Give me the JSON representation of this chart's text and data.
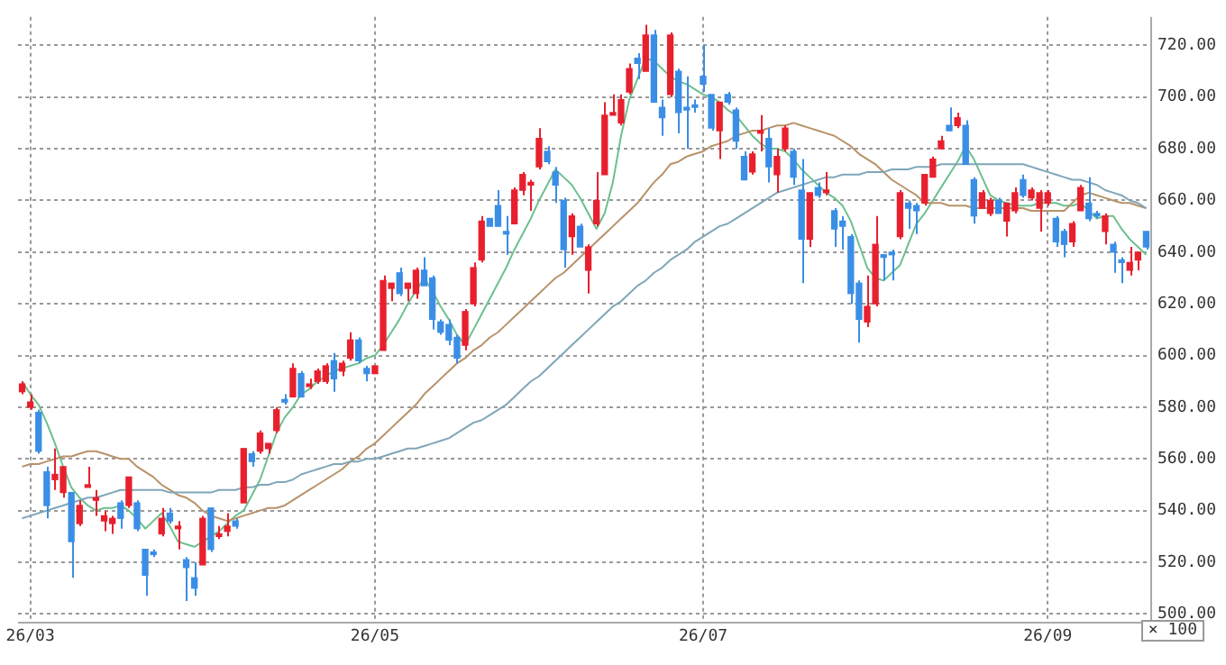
{
  "chart_data": {
    "type": "candlestick",
    "marker": "none",
    "grid": true,
    "categories": [
      null,
      "26/03",
      null,
      null,
      null,
      null,
      null,
      null,
      null,
      null,
      null,
      null,
      null,
      null,
      null,
      null,
      null,
      null,
      null,
      null,
      null,
      null,
      null,
      null,
      null,
      null,
      null,
      null,
      null,
      null,
      null,
      null,
      null,
      null,
      null,
      null,
      null,
      null,
      null,
      null,
      null,
      null,
      null,
      "26/05",
      null,
      null,
      null,
      null,
      null,
      null,
      null,
      null,
      null,
      null,
      null,
      null,
      null,
      null,
      null,
      null,
      null,
      null,
      null,
      null,
      null,
      null,
      null,
      null,
      null,
      null,
      null,
      null,
      null,
      null,
      null,
      null,
      null,
      null,
      null,
      null,
      null,
      null,
      null,
      "26/07",
      null,
      null,
      null,
      null,
      null,
      null,
      null,
      null,
      null,
      null,
      null,
      null,
      null,
      null,
      null,
      null,
      null,
      null,
      null,
      null,
      null,
      null,
      null,
      null,
      null,
      null,
      null,
      null,
      null,
      null,
      null,
      null,
      null,
      null,
      null,
      null,
      null,
      null,
      null,
      null,
      null,
      "26/09",
      null,
      null,
      null,
      null,
      null,
      null,
      null,
      null,
      null,
      null,
      null,
      null
    ],
    "ohlc": [
      [
        586,
        590,
        585,
        589
      ],
      [
        580,
        585,
        579,
        582
      ],
      [
        578,
        579,
        562,
        563
      ],
      [
        555,
        557,
        537,
        542
      ],
      [
        552,
        564,
        548,
        554
      ],
      [
        547,
        557,
        545,
        557
      ],
      [
        547,
        547,
        514,
        528
      ],
      [
        535,
        544,
        534,
        542
      ],
      [
        549,
        557,
        549,
        550
      ],
      [
        544,
        548,
        538,
        545
      ],
      [
        536,
        540,
        532,
        538
      ],
      [
        535,
        538,
        531,
        537
      ],
      [
        543,
        544,
        533,
        537
      ],
      [
        542,
        553,
        541,
        553
      ],
      [
        543,
        544,
        532,
        533
      ],
      [
        525,
        525,
        507,
        515
      ],
      [
        524,
        525,
        522,
        523
      ],
      [
        531,
        541,
        530,
        537
      ],
      [
        539,
        541,
        535,
        536
      ],
      [
        533,
        536,
        525,
        534
      ],
      [
        521,
        522,
        505,
        518
      ],
      [
        514,
        520,
        507,
        510
      ],
      [
        519,
        538,
        519,
        537
      ],
      [
        541,
        541,
        524,
        525
      ],
      [
        530,
        534,
        529,
        531
      ],
      [
        532,
        539,
        530,
        534
      ],
      [
        536,
        537,
        533,
        534
      ],
      [
        543,
        564,
        543,
        564
      ],
      [
        562,
        563,
        557,
        559
      ],
      [
        563,
        571,
        562,
        570
      ],
      [
        564,
        566,
        562,
        566
      ],
      [
        571,
        580,
        570,
        579
      ],
      [
        583,
        585,
        581,
        582
      ],
      [
        584,
        597,
        584,
        595
      ],
      [
        593,
        594,
        584,
        584
      ],
      [
        588,
        591,
        587,
        589
      ],
      [
        590,
        595,
        589,
        594
      ],
      [
        590,
        597,
        589,
        596
      ],
      [
        598,
        601,
        586,
        591
      ],
      [
        594,
        598,
        592,
        597
      ],
      [
        599,
        609,
        598,
        606
      ],
      [
        606,
        607,
        597,
        598
      ],
      [
        595,
        596,
        590,
        593
      ],
      [
        593,
        596,
        593,
        596
      ],
      [
        602,
        631,
        602,
        629
      ],
      [
        626,
        628,
        621,
        628
      ],
      [
        632,
        634,
        623,
        624
      ],
      [
        626,
        628,
        621,
        628
      ],
      [
        624,
        634,
        622,
        633
      ],
      [
        633,
        638,
        627,
        627
      ],
      [
        630,
        631,
        610,
        614
      ],
      [
        613,
        614,
        608,
        609
      ],
      [
        612,
        614,
        604,
        606
      ],
      [
        607,
        608,
        597,
        599
      ],
      [
        604,
        618,
        602,
        617
      ],
      [
        620,
        636,
        619,
        634
      ],
      [
        637,
        654,
        636,
        652
      ],
      [
        653,
        653,
        650,
        650
      ],
      [
        658,
        664,
        650,
        650
      ],
      [
        648,
        654,
        639,
        647
      ],
      [
        651,
        665,
        651,
        664
      ],
      [
        664,
        671,
        662,
        670
      ],
      [
        666,
        668,
        656,
        667
      ],
      [
        673,
        688,
        672,
        684
      ],
      [
        679,
        681,
        674,
        675
      ],
      [
        671,
        673,
        659,
        666
      ],
      [
        660,
        661,
        634,
        641
      ],
      [
        646,
        655,
        639,
        654
      ],
      [
        650,
        651,
        642,
        642
      ],
      [
        633,
        643,
        624,
        642
      ],
      [
        651,
        671,
        650,
        660
      ],
      [
        670,
        698,
        670,
        693
      ],
      [
        693,
        701,
        693,
        694
      ],
      [
        690,
        701,
        689,
        699
      ],
      [
        702,
        713,
        701,
        711
      ],
      [
        715,
        717,
        707,
        713
      ],
      [
        710,
        728,
        710,
        724
      ],
      [
        724,
        726,
        698,
        698
      ],
      [
        696,
        699,
        685,
        692
      ],
      [
        701,
        725,
        700,
        724
      ],
      [
        710,
        711,
        686,
        694
      ],
      [
        696,
        708,
        680,
        695
      ],
      [
        697,
        699,
        694,
        696
      ],
      [
        708,
        720,
        702,
        705
      ],
      [
        701,
        701,
        687,
        688
      ],
      [
        687,
        698,
        676,
        698
      ],
      [
        701,
        702,
        697,
        698
      ],
      [
        695,
        696,
        680,
        683
      ],
      [
        677,
        679,
        668,
        668
      ],
      [
        671,
        679,
        670,
        678
      ],
      [
        686,
        693,
        679,
        687
      ],
      [
        684,
        688,
        667,
        673
      ],
      [
        670,
        680,
        663,
        677
      ],
      [
        680,
        689,
        679,
        688
      ],
      [
        679,
        680,
        666,
        669
      ],
      [
        664,
        676,
        628,
        645
      ],
      [
        645,
        663,
        642,
        663
      ],
      [
        665,
        667,
        661,
        662
      ],
      [
        663,
        671,
        662,
        664
      ],
      [
        656,
        657,
        642,
        649
      ],
      [
        652,
        654,
        641,
        650
      ],
      [
        646,
        647,
        620,
        624
      ],
      [
        628,
        629,
        605,
        614
      ],
      [
        613,
        631,
        611,
        619
      ],
      [
        620,
        654,
        619,
        643
      ],
      [
        639,
        639,
        629,
        638
      ],
      [
        640,
        641,
        629,
        639
      ],
      [
        646,
        664,
        645,
        663
      ],
      [
        659,
        660,
        649,
        657
      ],
      [
        658,
        659,
        647,
        656
      ],
      [
        659,
        670,
        658,
        670
      ],
      [
        669,
        677,
        669,
        676
      ],
      [
        680,
        685,
        680,
        683
      ],
      [
        689,
        696,
        687,
        687
      ],
      [
        689,
        694,
        688,
        692
      ],
      [
        689,
        691,
        674,
        674
      ],
      [
        668,
        669,
        651,
        654
      ],
      [
        657,
        664,
        657,
        663
      ],
      [
        655,
        661,
        654,
        660
      ],
      [
        660,
        661,
        655,
        655
      ],
      [
        652,
        659,
        646,
        659
      ],
      [
        656,
        665,
        655,
        663
      ],
      [
        668,
        670,
        661,
        662
      ],
      [
        661,
        665,
        660,
        664
      ],
      [
        657,
        664,
        648,
        663
      ],
      [
        659,
        664,
        658,
        663
      ],
      [
        653,
        654,
        642,
        644
      ],
      [
        648,
        649,
        638,
        643
      ],
      [
        644,
        652,
        642,
        651
      ],
      [
        656,
        666,
        656,
        665
      ],
      [
        659,
        669,
        652,
        653
      ],
      [
        655,
        656,
        653,
        654
      ],
      [
        648,
        655,
        643,
        654
      ],
      [
        643,
        644,
        632,
        640
      ],
      [
        637,
        638,
        628,
        636
      ],
      [
        633,
        642,
        631,
        636
      ],
      [
        637,
        640,
        633,
        640
      ],
      [
        648,
        648,
        641,
        642
      ]
    ],
    "colors": [
      "#e8202e",
      "#e8202e",
      "#3a8ee6",
      "#3a8ee6",
      "#e8202e",
      "#e8202e",
      "#3a8ee6",
      "#e8202e",
      "#e8202e",
      "#e8202e",
      "#e8202e",
      "#e8202e",
      "#3a8ee6",
      "#e8202e",
      "#3a8ee6",
      "#3a8ee6",
      "#3a8ee6",
      "#e8202e",
      "#3a8ee6",
      "#e8202e",
      "#3a8ee6",
      "#3a8ee6",
      "#e8202e",
      "#3a8ee6",
      "#e8202e",
      "#e8202e",
      "#3a8ee6",
      "#e8202e",
      "#3a8ee6",
      "#e8202e",
      "#e8202e",
      "#e8202e",
      "#3a8ee6",
      "#e8202e",
      "#3a8ee6",
      "#e8202e",
      "#e8202e",
      "#e8202e",
      "#3a8ee6",
      "#e8202e",
      "#e8202e",
      "#3a8ee6",
      "#3a8ee6",
      "#e8202e",
      "#e8202e",
      "#e8202e",
      "#3a8ee6",
      "#e8202e",
      "#e8202e",
      "#3a8ee6",
      "#3a8ee6",
      "#3a8ee6",
      "#3a8ee6",
      "#3a8ee6",
      "#e8202e",
      "#e8202e",
      "#e8202e",
      "#3a8ee6",
      "#3a8ee6",
      "#3a8ee6",
      "#e8202e",
      "#e8202e",
      "#e8202e",
      "#e8202e",
      "#3a8ee6",
      "#3a8ee6",
      "#3a8ee6",
      "#e8202e",
      "#3a8ee6",
      "#e8202e",
      "#e8202e",
      "#e8202e",
      "#e8202e",
      "#e8202e",
      "#e8202e",
      "#3a8ee6",
      "#e8202e",
      "#3a8ee6",
      "#3a8ee6",
      "#e8202e",
      "#3a8ee6",
      "#3a8ee6",
      "#3a8ee6",
      "#3a8ee6",
      "#3a8ee6",
      "#e8202e",
      "#3a8ee6",
      "#3a8ee6",
      "#3a8ee6",
      "#e8202e",
      "#e8202e",
      "#3a8ee6",
      "#e8202e",
      "#e8202e",
      "#3a8ee6",
      "#3a8ee6",
      "#e8202e",
      "#3a8ee6",
      "#e8202e",
      "#3a8ee6",
      "#3a8ee6",
      "#3a8ee6",
      "#3a8ee6",
      "#e8202e",
      "#e8202e",
      "#3a8ee6",
      "#3a8ee6",
      "#e8202e",
      "#3a8ee6",
      "#3a8ee6",
      "#e8202e",
      "#e8202e",
      "#e8202e",
      "#3a8ee6",
      "#e8202e",
      "#3a8ee6",
      "#3a8ee6",
      "#e8202e",
      "#e8202e",
      "#3a8ee6",
      "#e8202e",
      "#e8202e",
      "#3a8ee6",
      "#e8202e",
      "#e8202e",
      "#e8202e",
      "#3a8ee6",
      "#3a8ee6",
      "#e8202e",
      "#e8202e",
      "#3a8ee6",
      "#3a8ee6",
      "#e8202e",
      "#3a8ee6",
      "#3a8ee6",
      "#e8202e",
      "#e8202e",
      "#3a8ee6"
    ],
    "series": [
      {
        "type": "line",
        "color": "#7fa6b8",
        "values": [
          537,
          538,
          539,
          540,
          541,
          542,
          543,
          544,
          545,
          545,
          546,
          547,
          548,
          548,
          548,
          548,
          548,
          548,
          547,
          547,
          547,
          547,
          547,
          547,
          548,
          548,
          548,
          549,
          549,
          550,
          550,
          551,
          551,
          552,
          554,
          555,
          556,
          557,
          558,
          558,
          559,
          559,
          560,
          560,
          561,
          562,
          563,
          564,
          564,
          565,
          566,
          567,
          568,
          570,
          572,
          574,
          575,
          577,
          579,
          581,
          584,
          587,
          590,
          592,
          595,
          598,
          601,
          604,
          607,
          610,
          613,
          616,
          619,
          621,
          624,
          627,
          629,
          632,
          634,
          637,
          639,
          641,
          644,
          646,
          648,
          650,
          651,
          653,
          655,
          657,
          659,
          661,
          663,
          664,
          665,
          666,
          667,
          668,
          669,
          669,
          670,
          670,
          670,
          671,
          671,
          671,
          672,
          672,
          672,
          673,
          673,
          673,
          674,
          674,
          674,
          674,
          674,
          674,
          674,
          674,
          674,
          674,
          674,
          673,
          672,
          671,
          670,
          669,
          668,
          668,
          667,
          666,
          664,
          663,
          662,
          660,
          659,
          657
        ]
      },
      {
        "type": "line",
        "color": "#b8926a",
        "values": [
          557,
          558,
          558,
          559,
          560,
          561,
          561,
          562,
          563,
          563,
          562,
          561,
          560,
          560,
          557,
          555,
          553,
          550,
          548,
          546,
          545,
          543,
          540,
          538,
          537,
          536,
          537,
          538,
          539,
          540,
          541,
          541,
          542,
          544,
          546,
          548,
          550,
          552,
          554,
          556,
          559,
          561,
          564,
          566,
          569,
          572,
          575,
          578,
          581,
          585,
          588,
          591,
          594,
          597,
          599,
          602,
          604,
          607,
          609,
          612,
          615,
          618,
          621,
          624,
          627,
          630,
          632,
          635,
          638,
          641,
          644,
          647,
          650,
          653,
          656,
          659,
          663,
          667,
          670,
          674,
          675,
          677,
          678,
          679,
          681,
          682,
          683,
          685,
          686,
          687,
          687,
          688,
          689,
          689,
          690,
          689,
          688,
          687,
          686,
          685,
          683,
          681,
          678,
          676,
          674,
          671,
          668,
          666,
          664,
          662,
          659,
          659,
          659,
          658,
          658,
          658,
          657,
          657,
          657,
          657,
          657,
          657,
          657,
          656,
          656,
          656,
          656,
          656,
          659,
          662,
          663,
          662,
          661,
          660,
          659,
          659,
          658,
          657
        ]
      },
      {
        "type": "line",
        "color": "#6cc08e",
        "values": [
          590,
          585,
          581,
          574,
          566,
          557,
          549,
          545,
          542,
          540,
          541,
          541,
          542,
          540,
          537,
          533,
          536,
          539,
          534,
          528,
          527,
          526,
          528,
          530,
          532,
          535,
          538,
          540,
          546,
          552,
          561,
          570,
          576,
          580,
          585,
          587,
          590,
          592,
          594,
          595,
          596,
          597,
          599,
          600,
          604,
          609,
          614,
          620,
          625,
          630,
          625,
          619,
          614,
          608,
          604,
          610,
          616,
          622,
          628,
          634,
          641,
          647,
          653,
          660,
          666,
          672,
          669,
          666,
          661,
          655,
          649,
          655,
          667,
          685,
          699,
          707,
          715,
          714,
          711,
          708,
          706,
          705,
          703,
          701,
          700,
          698,
          695,
          693,
          689,
          685,
          682,
          680,
          680,
          679,
          676,
          672,
          669,
          666,
          663,
          661,
          658,
          652,
          643,
          634,
          630,
          629,
          632,
          635,
          643,
          651,
          655,
          660,
          665,
          670,
          675,
          681,
          676,
          669,
          662,
          660,
          659,
          658,
          658,
          658,
          659,
          659,
          659,
          658,
          658,
          659,
          656,
          653,
          654,
          654,
          649,
          645,
          642,
          639
        ]
      }
    ],
    "ylim": [
      497,
      731
    ],
    "yticks": [
      {
        "value": 500,
        "label": "500.00"
      },
      {
        "value": 520,
        "label": "520.00"
      },
      {
        "value": 540,
        "label": "540.00"
      },
      {
        "value": 560,
        "label": "560.00"
      },
      {
        "value": 580,
        "label": "580.00"
      },
      {
        "value": 600,
        "label": "600.00"
      },
      {
        "value": 620,
        "label": "620.00"
      },
      {
        "value": 640,
        "label": "640.00"
      },
      {
        "value": 660,
        "label": "660.00"
      },
      {
        "value": 680,
        "label": "680.00"
      },
      {
        "value": 700,
        "label": "700.00"
      },
      {
        "value": 720,
        "label": "720.00"
      }
    ],
    "annotations": [
      "× 100"
    ]
  }
}
